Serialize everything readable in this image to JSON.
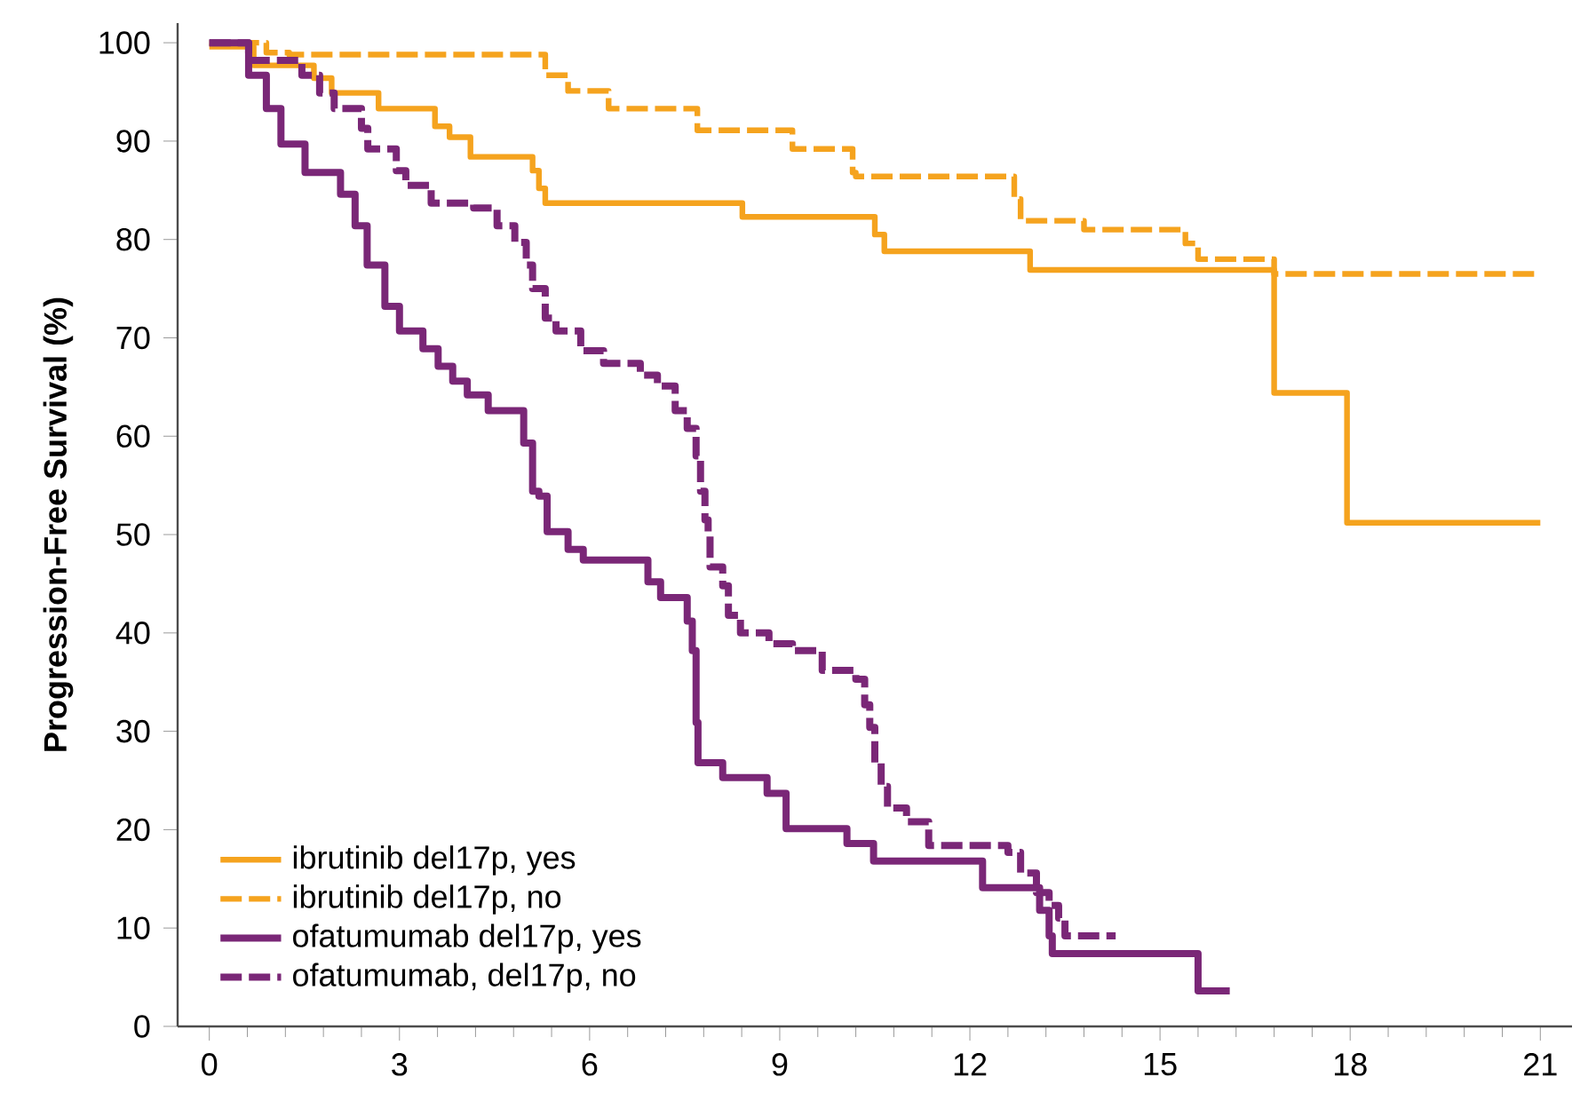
{
  "chart_data": {
    "type": "step",
    "ylabel": "Progression-Free Survival (%)",
    "xlim": [
      -0.5,
      21.5
    ],
    "ylim": [
      0,
      102
    ],
    "xticks": [
      0,
      3,
      6,
      9,
      12,
      15,
      18,
      21
    ],
    "yticks": [
      0,
      10,
      20,
      30,
      40,
      50,
      60,
      70,
      80,
      90,
      100
    ],
    "grid": false,
    "legend": "bottom left",
    "series": [
      {
        "name": "ibrutinib del17p, yes",
        "color": "#f5a31e",
        "line_style": "solid",
        "x": [
          0,
          0.7,
          1.65,
          1.93,
          2.67,
          3.56,
          3.79,
          4.12,
          5.1,
          5.2,
          5.3,
          8.41,
          10.5,
          10.65,
          12.95,
          16.8,
          17.95,
          21
        ],
        "values": [
          99.6,
          97.7,
          96.4,
          94.9,
          93.3,
          91.5,
          90.4,
          88.4,
          87,
          85.2,
          83.7,
          82.3,
          80.5,
          78.8,
          76.9,
          64.4,
          51.2,
          51.2
        ]
      },
      {
        "name": "ibrutinib del17p, no",
        "color": "#f5a31e",
        "line_style": "dashed",
        "x": [
          0,
          0.9,
          1.26,
          5.3,
          5.66,
          6.3,
          7.7,
          9.2,
          10.15,
          10.2,
          12.7,
          12.8,
          13.8,
          15.4,
          15.6,
          16.8,
          21
        ],
        "values": [
          100,
          99,
          98.8,
          96.7,
          95.1,
          93.3,
          91.1,
          89.2,
          86.8,
          86.4,
          84.1,
          81.9,
          81,
          79.6,
          78,
          76.5,
          76.5
        ]
      },
      {
        "name": "ofatumumab del17p, yes",
        "color": "#7a2777",
        "line_style": "solid",
        "x": [
          0,
          0.62,
          0.8,
          0.9,
          1.13,
          1.51,
          2.07,
          2.3,
          2.49,
          2.77,
          3.0,
          3.37,
          3.61,
          3.84,
          4.07,
          4.4,
          4.96,
          5.1,
          5.2,
          5.33,
          5.66,
          5.9,
          6.92,
          7.12,
          7.54,
          7.62,
          7.68,
          7.71,
          8.1,
          8.8,
          9.1,
          10.06,
          10.48,
          12.2,
          13.1,
          13.25,
          13.3,
          15.6,
          16.1
        ],
        "values": [
          100,
          96.7,
          96.7,
          93.3,
          89.7,
          86.8,
          84.6,
          81.4,
          77.4,
          73.2,
          70.7,
          68.9,
          67.1,
          65.6,
          64.2,
          62.6,
          59.3,
          54.4,
          53.9,
          50.3,
          48.5,
          47.4,
          45.2,
          43.6,
          41.2,
          38.2,
          30.9,
          26.8,
          25.3,
          23.7,
          20.1,
          18.6,
          16.8,
          14.1,
          11.8,
          9.2,
          7.4,
          3.6,
          3.6
        ]
      },
      {
        "name": "ofatumumab, del17p, no",
        "color": "#7a2777",
        "line_style": "dashed",
        "x": [
          0,
          0.62,
          1.46,
          1.74,
          1.97,
          2.4,
          2.5,
          2.95,
          3.1,
          3.5,
          4.17,
          4.54,
          4.82,
          5.0,
          5.1,
          5.3,
          5.47,
          5.86,
          6.22,
          6.8,
          7.07,
          7.35,
          7.54,
          7.68,
          7.75,
          7.82,
          7.87,
          7.9,
          8.1,
          8.19,
          8.38,
          8.83,
          9.2,
          9.67,
          10.2,
          10.34,
          10.42,
          10.5,
          10.6,
          10.7,
          11.0,
          11.35,
          12.6,
          12.8,
          13.05,
          13.25,
          13.4,
          13.5,
          14.3
        ],
        "values": [
          100,
          98.2,
          96.7,
          94.9,
          93.3,
          91.3,
          89.2,
          87,
          85.5,
          83.7,
          83.2,
          81.4,
          79.7,
          77.4,
          75,
          72,
          70.7,
          68.7,
          67.4,
          66.2,
          65.1,
          62.6,
          60.8,
          58,
          54.4,
          51.5,
          50.3,
          46.7,
          44.8,
          41.8,
          40,
          38.9,
          38.2,
          36.2,
          35.3,
          32.7,
          30.4,
          26.8,
          24.4,
          22.2,
          20.8,
          18.4,
          17.7,
          15.6,
          13.6,
          12.3,
          11,
          9.2,
          9.2
        ]
      }
    ]
  }
}
